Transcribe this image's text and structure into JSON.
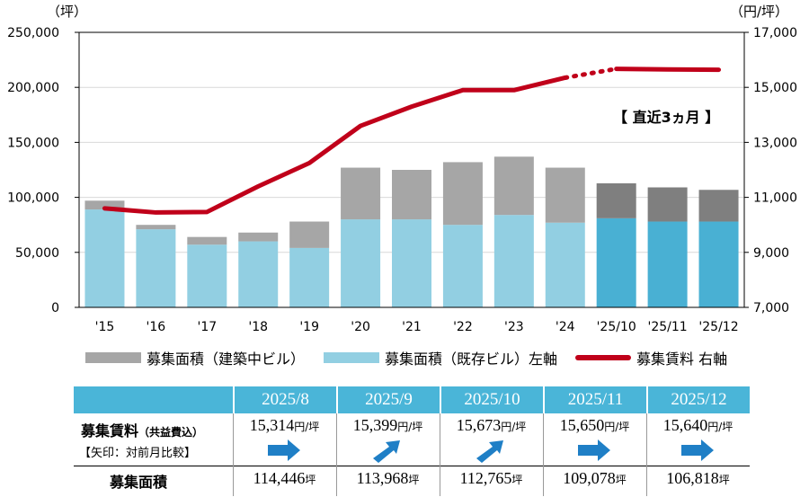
{
  "chart_data": {
    "type": "bar",
    "categories": [
      "'15",
      "'16",
      "'17",
      "'18",
      "'19",
      "'20",
      "'21",
      "'22",
      "'23",
      "'24",
      "'25/10",
      "'25/11",
      "'25/12"
    ],
    "series": [
      {
        "name": "募集面積（既存ビル）左軸",
        "type": "bar",
        "stack": "area",
        "values": [
          89000,
          71000,
          57000,
          60000,
          54000,
          80000,
          80000,
          75000,
          84000,
          77000,
          81000,
          78000,
          78000
        ]
      },
      {
        "name": "募集面積（建築中ビル）",
        "type": "bar",
        "stack": "area",
        "values": [
          8000,
          4000,
          7000,
          8000,
          24000,
          47000,
          45000,
          57000,
          53000,
          50000,
          31765,
          31078,
          28818
        ]
      },
      {
        "name": "募集賃料 右軸",
        "type": "line",
        "axis": "right",
        "values": [
          10600,
          10450,
          10470,
          11400,
          12250,
          13600,
          14300,
          14900,
          14900,
          15350,
          15673,
          15650,
          15640
        ]
      }
    ],
    "yleft_label": "（坪）",
    "yright_label": "（円/坪）",
    "yleft_ticks": [
      "250,000",
      "200,000",
      "150,000",
      "100,000",
      "50,000",
      "0"
    ],
    "yright_ticks": [
      "17,000",
      "15,000",
      "13,000",
      "11,000",
      "9,000",
      "7,000"
    ],
    "ylim_left": [
      0,
      250000
    ],
    "ylim_right": [
      7000,
      17000
    ],
    "annotation": "【 直近3ヵ月 】",
    "colors": {
      "existing": "#92cfe2",
      "existing_recent": "#49b0d3",
      "construction": "#a6a6a6",
      "construction_recent": "#7f7f7f",
      "rent_line": "#c0001a"
    }
  },
  "legend": {
    "construction": "募集面積（建築中ビル）",
    "existing": "募集面積（既存ビル）左軸",
    "rent": "募集賃料 右軸"
  },
  "table": {
    "months": [
      "2025/8",
      "2025/9",
      "2025/10",
      "2025/11",
      "2025/12"
    ],
    "rent_label": "募集賃料",
    "rent_label_sub": "（共益費込）",
    "arrow_note": "【矢印：対前月比較】",
    "rent_values": [
      "15,314",
      "15,399",
      "15,673",
      "15,650",
      "15,640"
    ],
    "rent_unit": "円/坪",
    "arrows": [
      "flat",
      "up",
      "up",
      "flat",
      "flat"
    ],
    "area_label": "募集面積",
    "area_values": [
      "114,446",
      "113,968",
      "112,765",
      "109,078",
      "106,818"
    ],
    "area_unit": "坪",
    "arrow_color": "#1f7fc6"
  }
}
